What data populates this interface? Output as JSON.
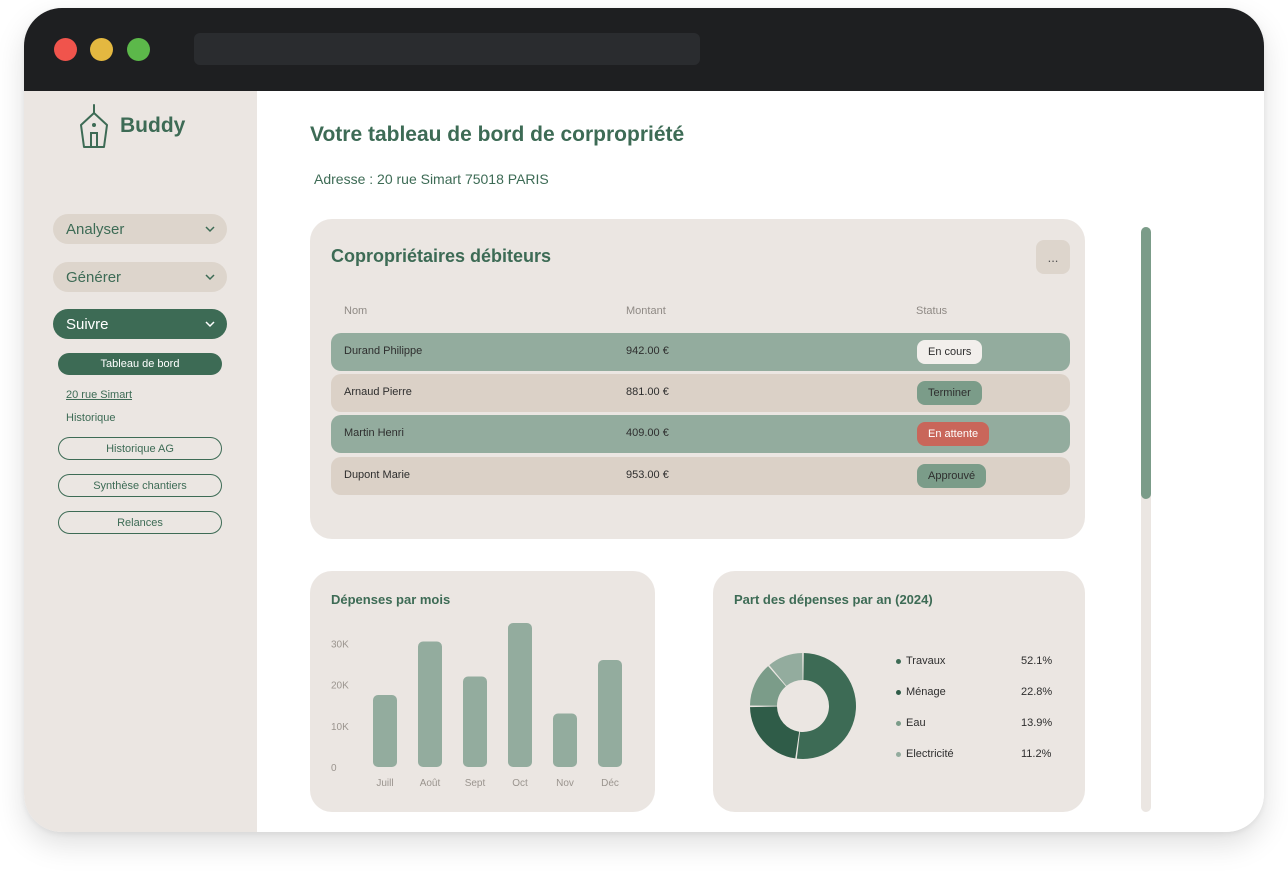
{
  "app": {
    "name": "Buddy"
  },
  "sidebar": {
    "menu": [
      {
        "label": "Analyser",
        "active": false
      },
      {
        "label": "Générer",
        "active": false
      },
      {
        "label": "Suivre",
        "active": true
      }
    ],
    "submenu": {
      "active": "Tableau de bord",
      "links": [
        "20 rue Simart",
        "Historique"
      ],
      "buttons": [
        "Historique AG",
        "Synthèse chantiers",
        "Relances"
      ]
    }
  },
  "header": {
    "title": "Votre tableau de bord de corpropriété",
    "address": "Adresse : 20 rue Simart 75018 PARIS"
  },
  "debtors": {
    "title": "Copropriétaires débiteurs",
    "more_label": "...",
    "columns": [
      "Nom",
      "Montant",
      "Status"
    ],
    "rows": [
      {
        "name": "Durand Philippe",
        "amount": "942.00 €",
        "status": "En cours"
      },
      {
        "name": "Arnaud Pierre",
        "amount": "881.00 €",
        "status": "Terminer"
      },
      {
        "name": "Martin Henri",
        "amount": "409.00 €",
        "status": "En attente"
      },
      {
        "name": "Dupont Marie",
        "amount": "953.00 €",
        "status": "Approuvé"
      }
    ]
  },
  "colors": {
    "brand": "#3d6b55",
    "row_green": "#93ac9e",
    "row_beige": "#dbd1c7",
    "badge_light": "#f2efec",
    "badge_green": "#7b9c89",
    "badge_red": "#c9665a"
  },
  "chart_data": [
    {
      "type": "bar",
      "title": "Dépenses par mois",
      "categories": [
        "Juill",
        "Août",
        "Sept",
        "Oct",
        "Nov",
        "Déc"
      ],
      "values": [
        17500,
        30500,
        22000,
        35000,
        13000,
        26000
      ],
      "yticks": [
        "0",
        "10K",
        "20K",
        "30K"
      ],
      "ylim": [
        0,
        35000
      ],
      "color": "#93ac9e",
      "grid": false
    },
    {
      "type": "pie",
      "title": "Part des dépenses par an (2024)",
      "labels": [
        "Travaux",
        "Ménage",
        "Eau",
        "Electricité"
      ],
      "values": [
        52.1,
        22.8,
        13.9,
        11.2
      ],
      "value_labels": [
        "52.1%",
        "22.8%",
        "13.9%",
        "11.2%"
      ],
      "colors": [
        "#3d6b55",
        "#2f5c48",
        "#7b9c89",
        "#93ac9e"
      ],
      "legend": "right"
    }
  ]
}
